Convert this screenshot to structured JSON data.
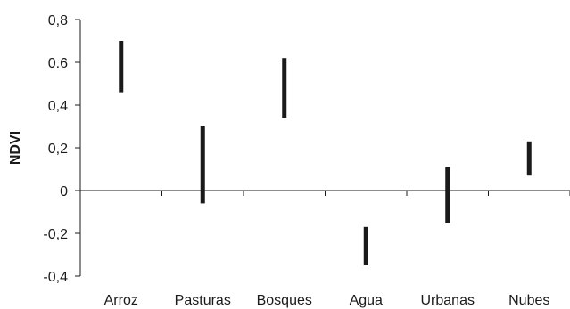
{
  "chart_data": {
    "type": "bar",
    "subtype": "range",
    "title": "",
    "xlabel": "",
    "ylabel": "NDVI",
    "ylim": [
      -0.4,
      0.8
    ],
    "yticks": [
      {
        "value": 0.8,
        "label": "0,8"
      },
      {
        "value": 0.6,
        "label": "0.6"
      },
      {
        "value": 0.4,
        "label": "0,4"
      },
      {
        "value": 0.2,
        "label": "0,2"
      },
      {
        "value": 0,
        "label": "0"
      },
      {
        "value": -0.2,
        "label": "-0,2"
      },
      {
        "value": -0.4,
        "label": "-0,4"
      }
    ],
    "categories": [
      "Arroz",
      "Pasturas",
      "Bosques",
      "Agua",
      "Urbanas",
      "Nubes"
    ],
    "ranges": [
      {
        "category": "Arroz",
        "low": 0.46,
        "high": 0.7
      },
      {
        "category": "Pasturas",
        "low": -0.06,
        "high": 0.3
      },
      {
        "category": "Bosques",
        "low": 0.34,
        "high": 0.62
      },
      {
        "category": "Agua",
        "low": -0.35,
        "high": -0.17
      },
      {
        "category": "Urbanas",
        "low": -0.15,
        "high": 0.11
      },
      {
        "category": "Nubes",
        "low": 0.07,
        "high": 0.23
      }
    ],
    "grid": false,
    "legend": "none",
    "colors": {
      "bar": "#1a1a1a",
      "axis": "#1a1a1a"
    }
  }
}
